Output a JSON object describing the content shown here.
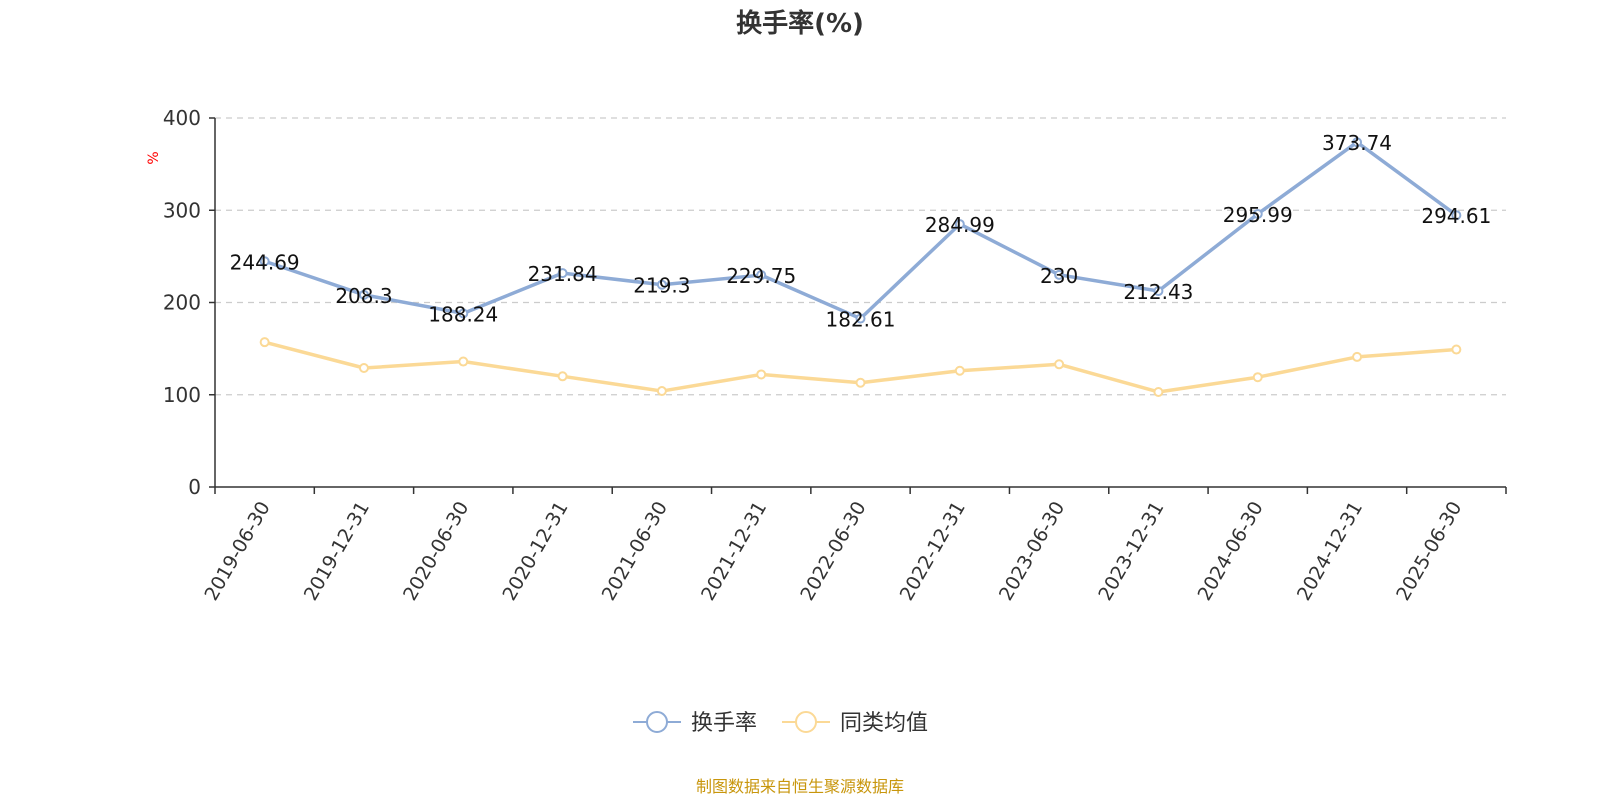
{
  "chart_data": {
    "type": "line",
    "title": "换手率(%)",
    "ylabel": "%",
    "ylim": [
      0,
      400
    ],
    "yticks": [
      0,
      100,
      200,
      300,
      400
    ],
    "categories": [
      "2019-06-30",
      "2019-12-31",
      "2020-06-30",
      "2020-12-31",
      "2021-06-30",
      "2021-12-31",
      "2022-06-30",
      "2022-12-31",
      "2023-06-30",
      "2023-12-31",
      "2024-06-30",
      "2024-12-31",
      "2025-06-30"
    ],
    "series": [
      {
        "name": "换手率",
        "color": "#8eabd6",
        "values": [
          244.69,
          208.3,
          188.24,
          231.84,
          219.3,
          229.75,
          182.61,
          284.99,
          230,
          212.43,
          295.99,
          373.74,
          294.61
        ],
        "labels": [
          "244.69",
          "208.3",
          "188.24",
          "231.84",
          "219.3",
          "229.75",
          "182.61",
          "284.99",
          "230",
          "212.43",
          "295.99",
          "373.74",
          "294.61"
        ]
      },
      {
        "name": "同类均值",
        "color": "#fbd996",
        "values": [
          157,
          129,
          136,
          120,
          104,
          122,
          113,
          126,
          133,
          103,
          119,
          141,
          149
        ]
      }
    ],
    "grid": true,
    "legend": "bottom-center",
    "source": "制图数据来自恒生聚源数据库",
    "colors": {
      "axis": "#333333",
      "grid": "#cccccc",
      "unit": "#ff0000",
      "source": "#c8960c"
    }
  }
}
